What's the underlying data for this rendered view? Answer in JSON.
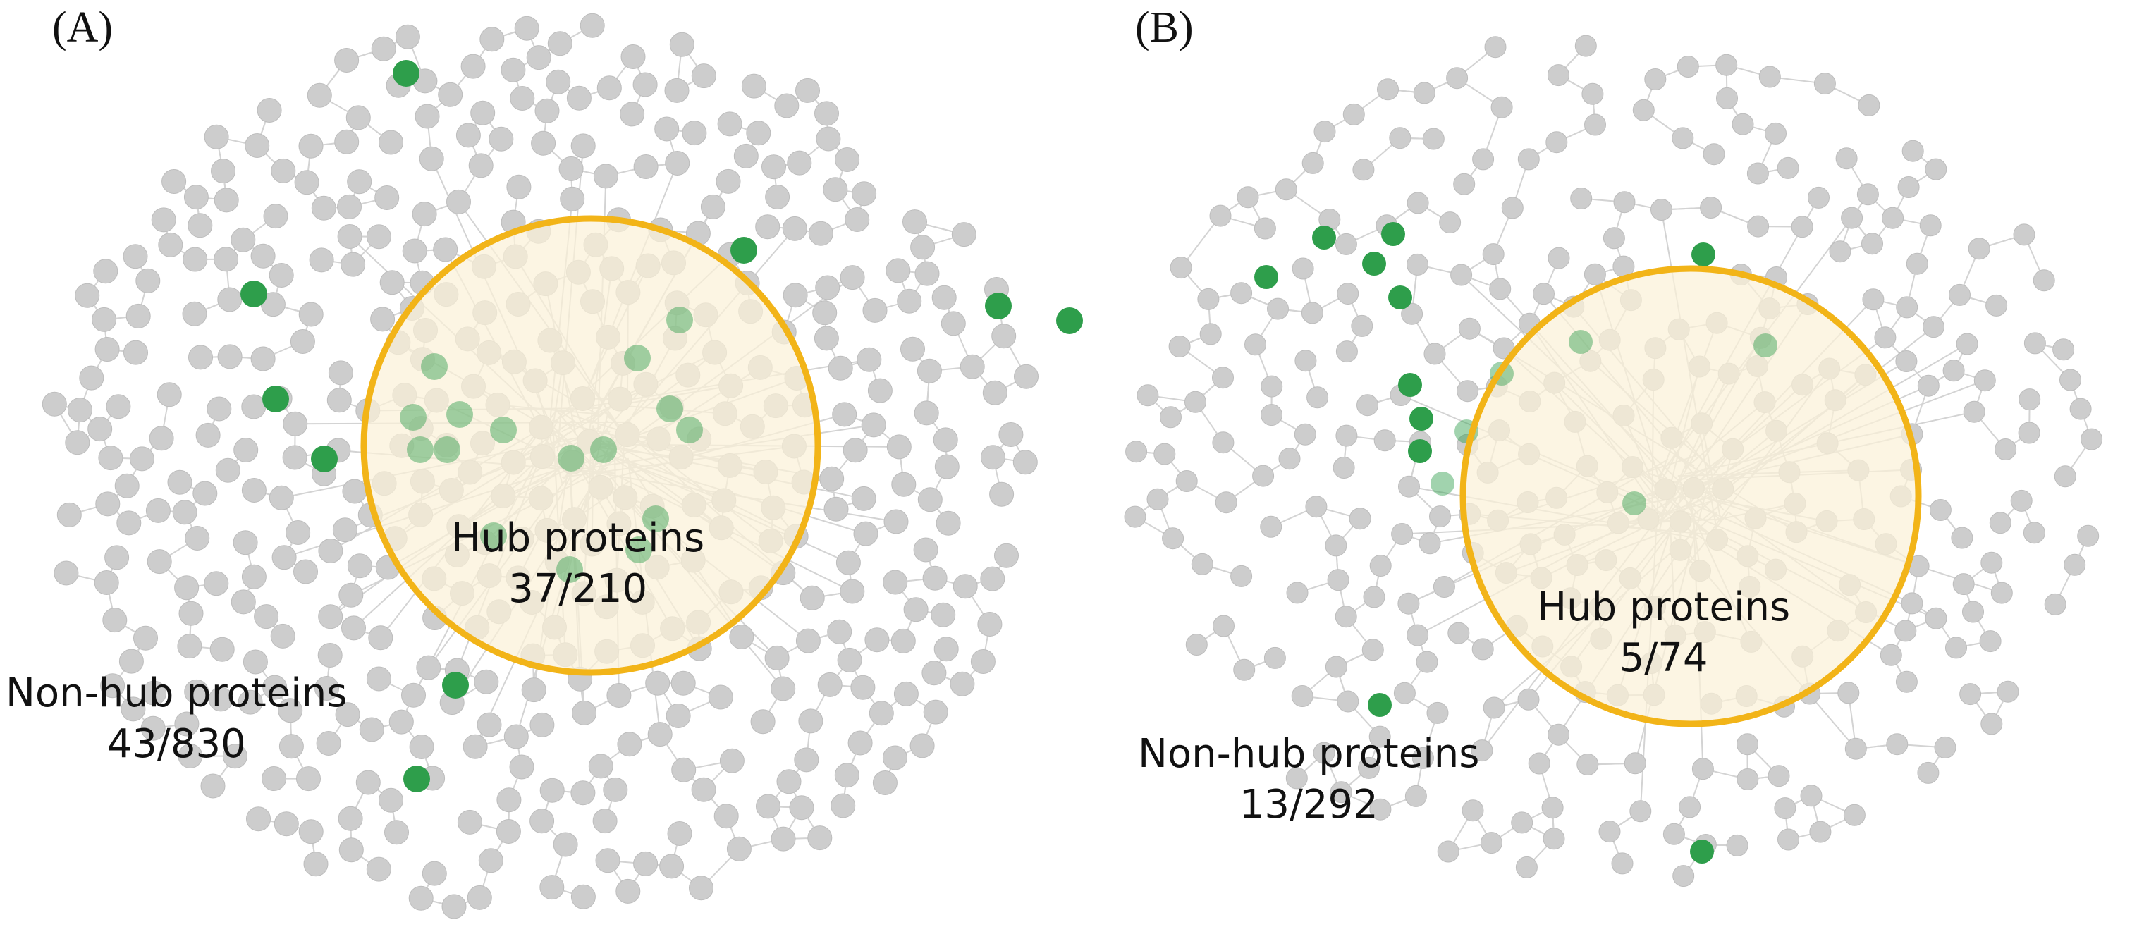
{
  "figure": {
    "colors": {
      "node": "#cdcdcd",
      "node_stroke": "#bdbdbd",
      "edge": "#d3d3d3",
      "highlight_node": "#2e9e4b",
      "hub_fill": "#fbf1d8",
      "hub_ring": "#f2b418",
      "text": "#111111"
    },
    "panels": [
      {
        "label": "(A)",
        "hub_caption": {
          "title": "Hub proteins",
          "count": "37/210"
        },
        "nonhub_caption": {
          "title": "Non-hub proteins",
          "count": "43/830"
        }
      },
      {
        "label": "(B)",
        "hub_caption": {
          "title": "Hub proteins",
          "count": "5/74"
        },
        "nonhub_caption": {
          "title": "Non-hub proteins",
          "count": "13/292"
        }
      }
    ]
  }
}
